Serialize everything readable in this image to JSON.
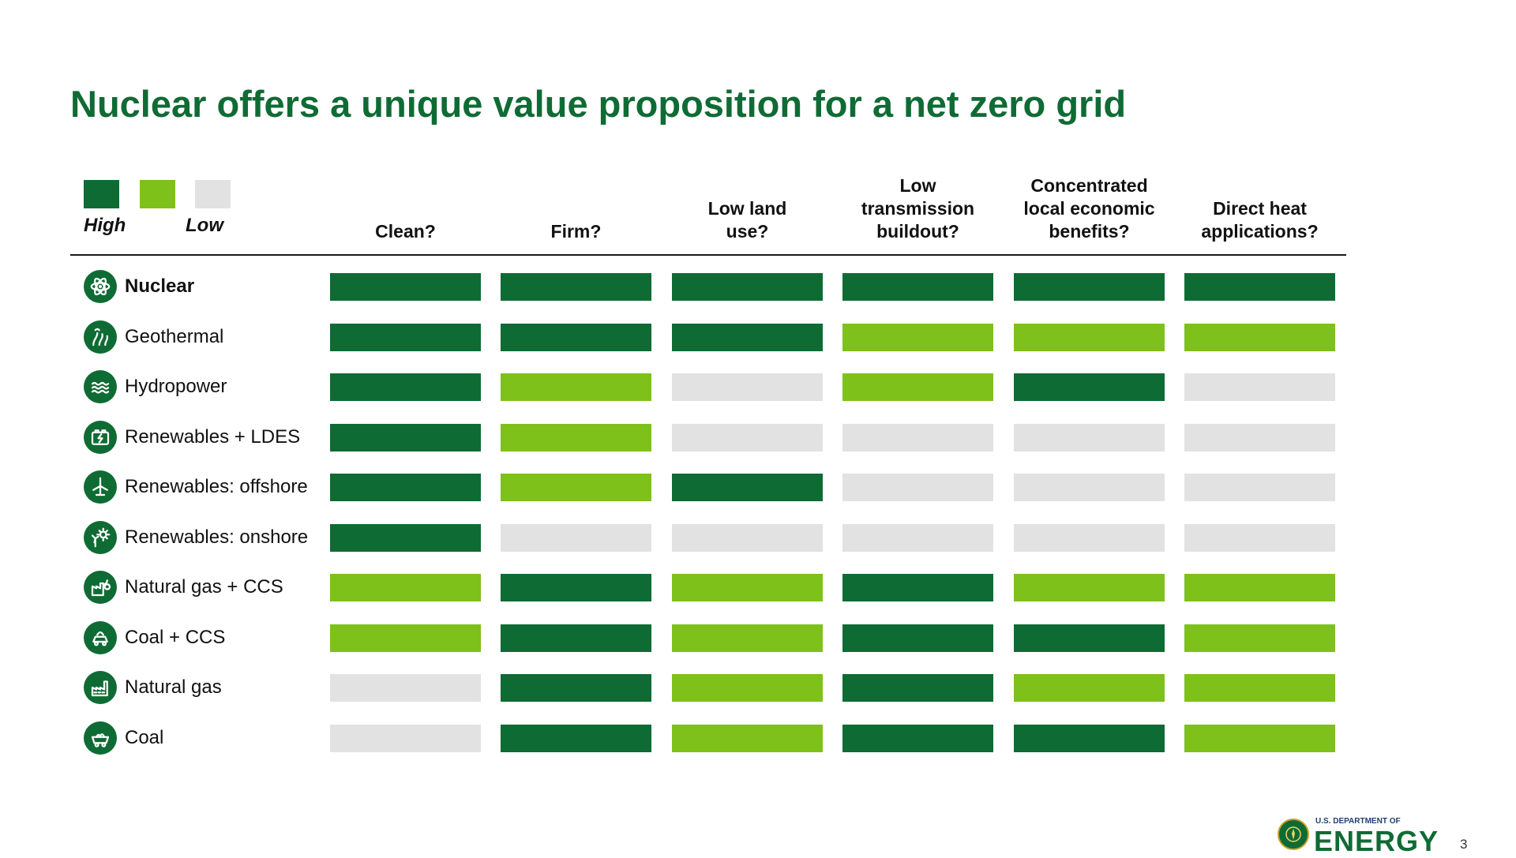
{
  "title": "Nuclear offers a unique value proposition for a net zero grid",
  "legend": {
    "high_label": "High",
    "low_label": "Low",
    "colors": [
      "#0f6b34",
      "#7ec11a",
      "#e2e2e2"
    ]
  },
  "page_number": "3",
  "logo": {
    "top_text": "U.S. DEPARTMENT OF",
    "main_text": "ENERGY"
  },
  "chart_data": {
    "type": "heatmap",
    "title": "Nuclear offers a unique value proposition for a net zero grid",
    "levels": [
      "High",
      "Medium",
      "Low"
    ],
    "level_colors": {
      "High": "#0f6b34",
      "Medium": "#7ec11a",
      "Low": "#e2e2e2"
    },
    "columns": [
      "Clean?",
      "Firm?",
      "Low land\nuse?",
      "Low\ntransmission\nbuildout?",
      "Concentrated\nlocal economic\nbenefits?",
      "Direct heat\napplications?"
    ],
    "rows": [
      {
        "label": "Nuclear",
        "icon": "atom-icon",
        "bold": true,
        "values": [
          "High",
          "High",
          "High",
          "High",
          "High",
          "High"
        ]
      },
      {
        "label": "Geothermal",
        "icon": "geothermal-icon",
        "bold": false,
        "values": [
          "High",
          "High",
          "High",
          "Medium",
          "Medium",
          "Medium"
        ]
      },
      {
        "label": "Hydropower",
        "icon": "water-waves-icon",
        "bold": false,
        "values": [
          "High",
          "Medium",
          "Low",
          "Medium",
          "High",
          "Low"
        ]
      },
      {
        "label": "Renewables + LDES",
        "icon": "battery-icon",
        "bold": false,
        "values": [
          "High",
          "Medium",
          "Low",
          "Low",
          "Low",
          "Low"
        ]
      },
      {
        "label": "Renewables: offshore",
        "icon": "wind-turbine-icon",
        "bold": false,
        "values": [
          "High",
          "Medium",
          "High",
          "Low",
          "Low",
          "Low"
        ]
      },
      {
        "label": "Renewables: onshore",
        "icon": "wind-solar-icon",
        "bold": false,
        "values": [
          "High",
          "Low",
          "Low",
          "Low",
          "Low",
          "Low"
        ]
      },
      {
        "label": "Natural gas + CCS",
        "icon": "gas-plant-ccs-icon",
        "bold": false,
        "values": [
          "Medium",
          "High",
          "Medium",
          "High",
          "Medium",
          "Medium"
        ]
      },
      {
        "label": "Coal + CCS",
        "icon": "coal-ccs-icon",
        "bold": false,
        "values": [
          "Medium",
          "High",
          "Medium",
          "High",
          "High",
          "Medium"
        ]
      },
      {
        "label": "Natural gas",
        "icon": "factory-icon",
        "bold": false,
        "values": [
          "Low",
          "High",
          "Medium",
          "High",
          "Medium",
          "Medium"
        ]
      },
      {
        "label": "Coal",
        "icon": "coal-cart-icon",
        "bold": false,
        "values": [
          "Low",
          "High",
          "Medium",
          "High",
          "High",
          "Medium"
        ]
      }
    ]
  }
}
